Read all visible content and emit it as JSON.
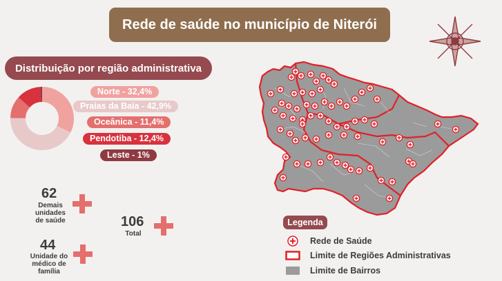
{
  "title": "Rede de saúde no município de Niterói",
  "distribution": {
    "heading": "Distribuição por região administrativa",
    "regions": [
      {
        "label": "Norte - 32,4%",
        "name": "Norte",
        "percent": 32.4,
        "color": "#f0a29f",
        "text_color": "#ffffff"
      },
      {
        "label": "Praias da Baía - 42,9%",
        "name": "Praias da Baía",
        "percent": 42.9,
        "color": "#e8c9c9",
        "text_color": "#ffffff"
      },
      {
        "label": "Oceânica - 11,4%",
        "name": "Oceânica",
        "percent": 11.4,
        "color": "#e46f6d",
        "text_color": "#ffffff"
      },
      {
        "label": "Pendotiba - 12,4%",
        "name": "Pendotiba",
        "percent": 12.4,
        "color": "#d7323d",
        "text_color": "#ffffff"
      },
      {
        "label": "Leste - 1%",
        "name": "Leste",
        "percent": 1.0,
        "color": "#8f3a41",
        "text_color": "#ffffff"
      }
    ]
  },
  "stats": {
    "other_units": {
      "value": "62",
      "label_lines": [
        "Demais",
        "unidades",
        "de saúde"
      ]
    },
    "family_units": {
      "value": "44",
      "label_lines": [
        "Unidade do",
        "médico de",
        "família"
      ]
    },
    "total": {
      "value": "106",
      "label": "Total"
    }
  },
  "legend": {
    "title": "Legenda",
    "items": [
      {
        "label": "Rede de Saúde",
        "icon": "health-cross-icon"
      },
      {
        "label": "Limite de Regiões Administrativas",
        "icon": "red-outline-box-icon"
      },
      {
        "label": "Limite de Bairros",
        "icon": "gray-box-icon"
      }
    ]
  },
  "colors": {
    "title_bg": "#8f6e4f",
    "accent": "#944a4f",
    "map_fill": "#9b9b9b",
    "region_border": "#e21f26",
    "cross": "#e46f6d"
  }
}
